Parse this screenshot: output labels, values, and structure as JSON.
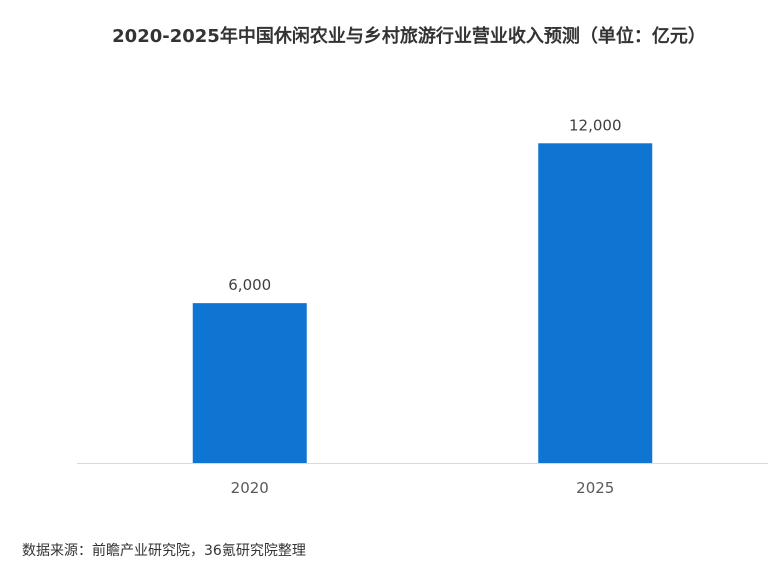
{
  "chart_data": {
    "type": "bar",
    "title": "2020-2025年中国休闲农业与乡村旅游行业营业收入预测（单位：亿元）",
    "categories": [
      "2020",
      "2025"
    ],
    "values": [
      6000,
      12000
    ],
    "value_labels": [
      "6,000",
      "12,000"
    ],
    "ylim": [
      0,
      14000
    ],
    "grid": false,
    "legend": "none",
    "bar_color": "#0E75D2",
    "axis_color": "#D9D9D9"
  },
  "source": "数据来源：前瞻产业研究院，36氪研究院整理"
}
